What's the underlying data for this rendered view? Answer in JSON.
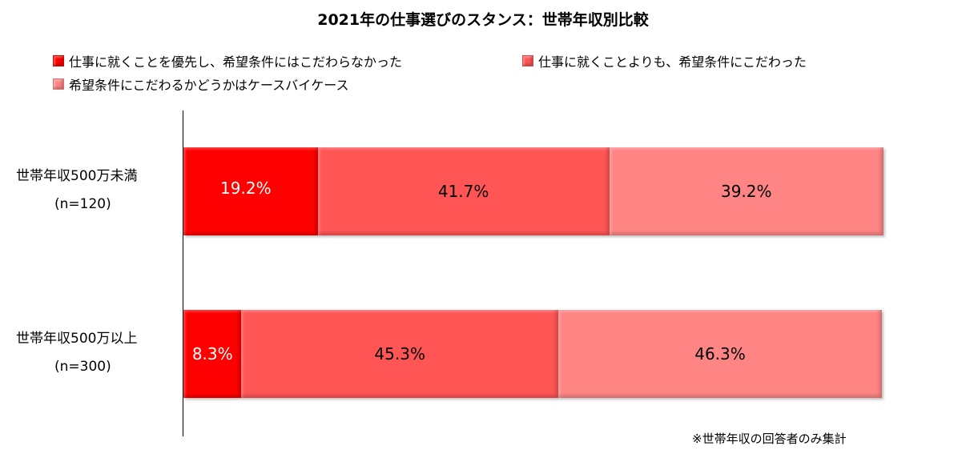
{
  "chart_data": {
    "type": "bar",
    "orientation": "horizontal",
    "stacked": true,
    "title": "2021年の仕事選びのスタンス：世帯年収別比較",
    "categories": [
      {
        "label": "世帯年収500万未満",
        "sample": "(n=120)"
      },
      {
        "label": "世帯年収500万以上",
        "sample": "(n=300)"
      }
    ],
    "series": [
      {
        "name": "仕事に就くことを優先し、希望条件にはこだわらなかった",
        "color": "#ff0000",
        "text_color": "#ffffff",
        "values": [
          19.2,
          8.3
        ],
        "labels": [
          "19.2%",
          "8.3%"
        ]
      },
      {
        "name": "仕事に就くことよりも、希望条件にこだわった",
        "color": "#ff5555",
        "text_color": "#000000",
        "values": [
          41.7,
          45.3
        ],
        "labels": [
          "41.7%",
          "45.3%"
        ]
      },
      {
        "name": "希望条件にこだわるかどうかはケースバイケース",
        "color": "#ff8585",
        "text_color": "#000000",
        "values": [
          39.2,
          46.3
        ],
        "labels": [
          "39.2%",
          "46.3%"
        ]
      }
    ],
    "xlim": [
      0,
      100
    ],
    "legend_position": "top",
    "grid": false
  },
  "footnote": "※世帯年収の回答者のみ集計"
}
